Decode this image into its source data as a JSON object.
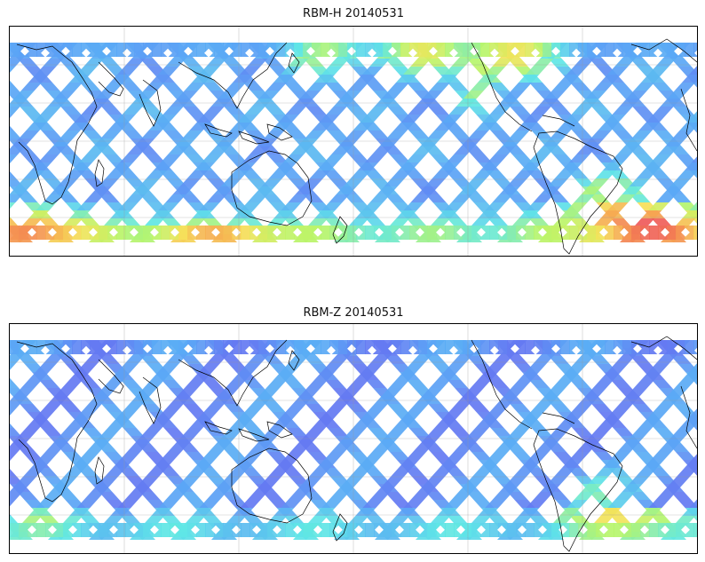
{
  "panels": [
    {
      "id": "h",
      "title": "RBM-H 20140531",
      "lon_range": [
        30,
        390
      ],
      "lat_range": [
        -60,
        60
      ],
      "gridlines": {
        "lon_step": 60,
        "lat_step": 20
      },
      "colormap": "jet",
      "track_pattern": "crossing ascending/descending satellite swaths",
      "high_value_regions": [
        {
          "region": "southern ocean south of Africa/Indian Ocean",
          "level": "high"
        },
        {
          "region": "South Atlantic off South America",
          "level": "high"
        },
        {
          "region": "North Pacific near dateline",
          "level": "moderate"
        },
        {
          "region": "east Pacific off Mexico",
          "level": "moderate"
        }
      ]
    },
    {
      "id": "z",
      "title": "RBM-Z 20140531",
      "lon_range": [
        30,
        390
      ],
      "lat_range": [
        -60,
        60
      ],
      "gridlines": {
        "lon_step": 60,
        "lat_step": 20
      },
      "colormap": "jet",
      "track_pattern": "crossing ascending/descending satellite swaths",
      "high_value_regions": [
        {
          "region": "South Atlantic off South America",
          "level": "moderate"
        },
        {
          "region": "southern ocean near 60S",
          "level": "low-moderate"
        }
      ]
    }
  ],
  "colors": {
    "low": "#6a5ef0",
    "mid_low": "#5aa8f5",
    "mid": "#5fe6e6",
    "mid_high": "#b8f56a",
    "high_yellow": "#f5e25a",
    "high_orange": "#f5a050",
    "high_red": "#ef5a5a"
  }
}
